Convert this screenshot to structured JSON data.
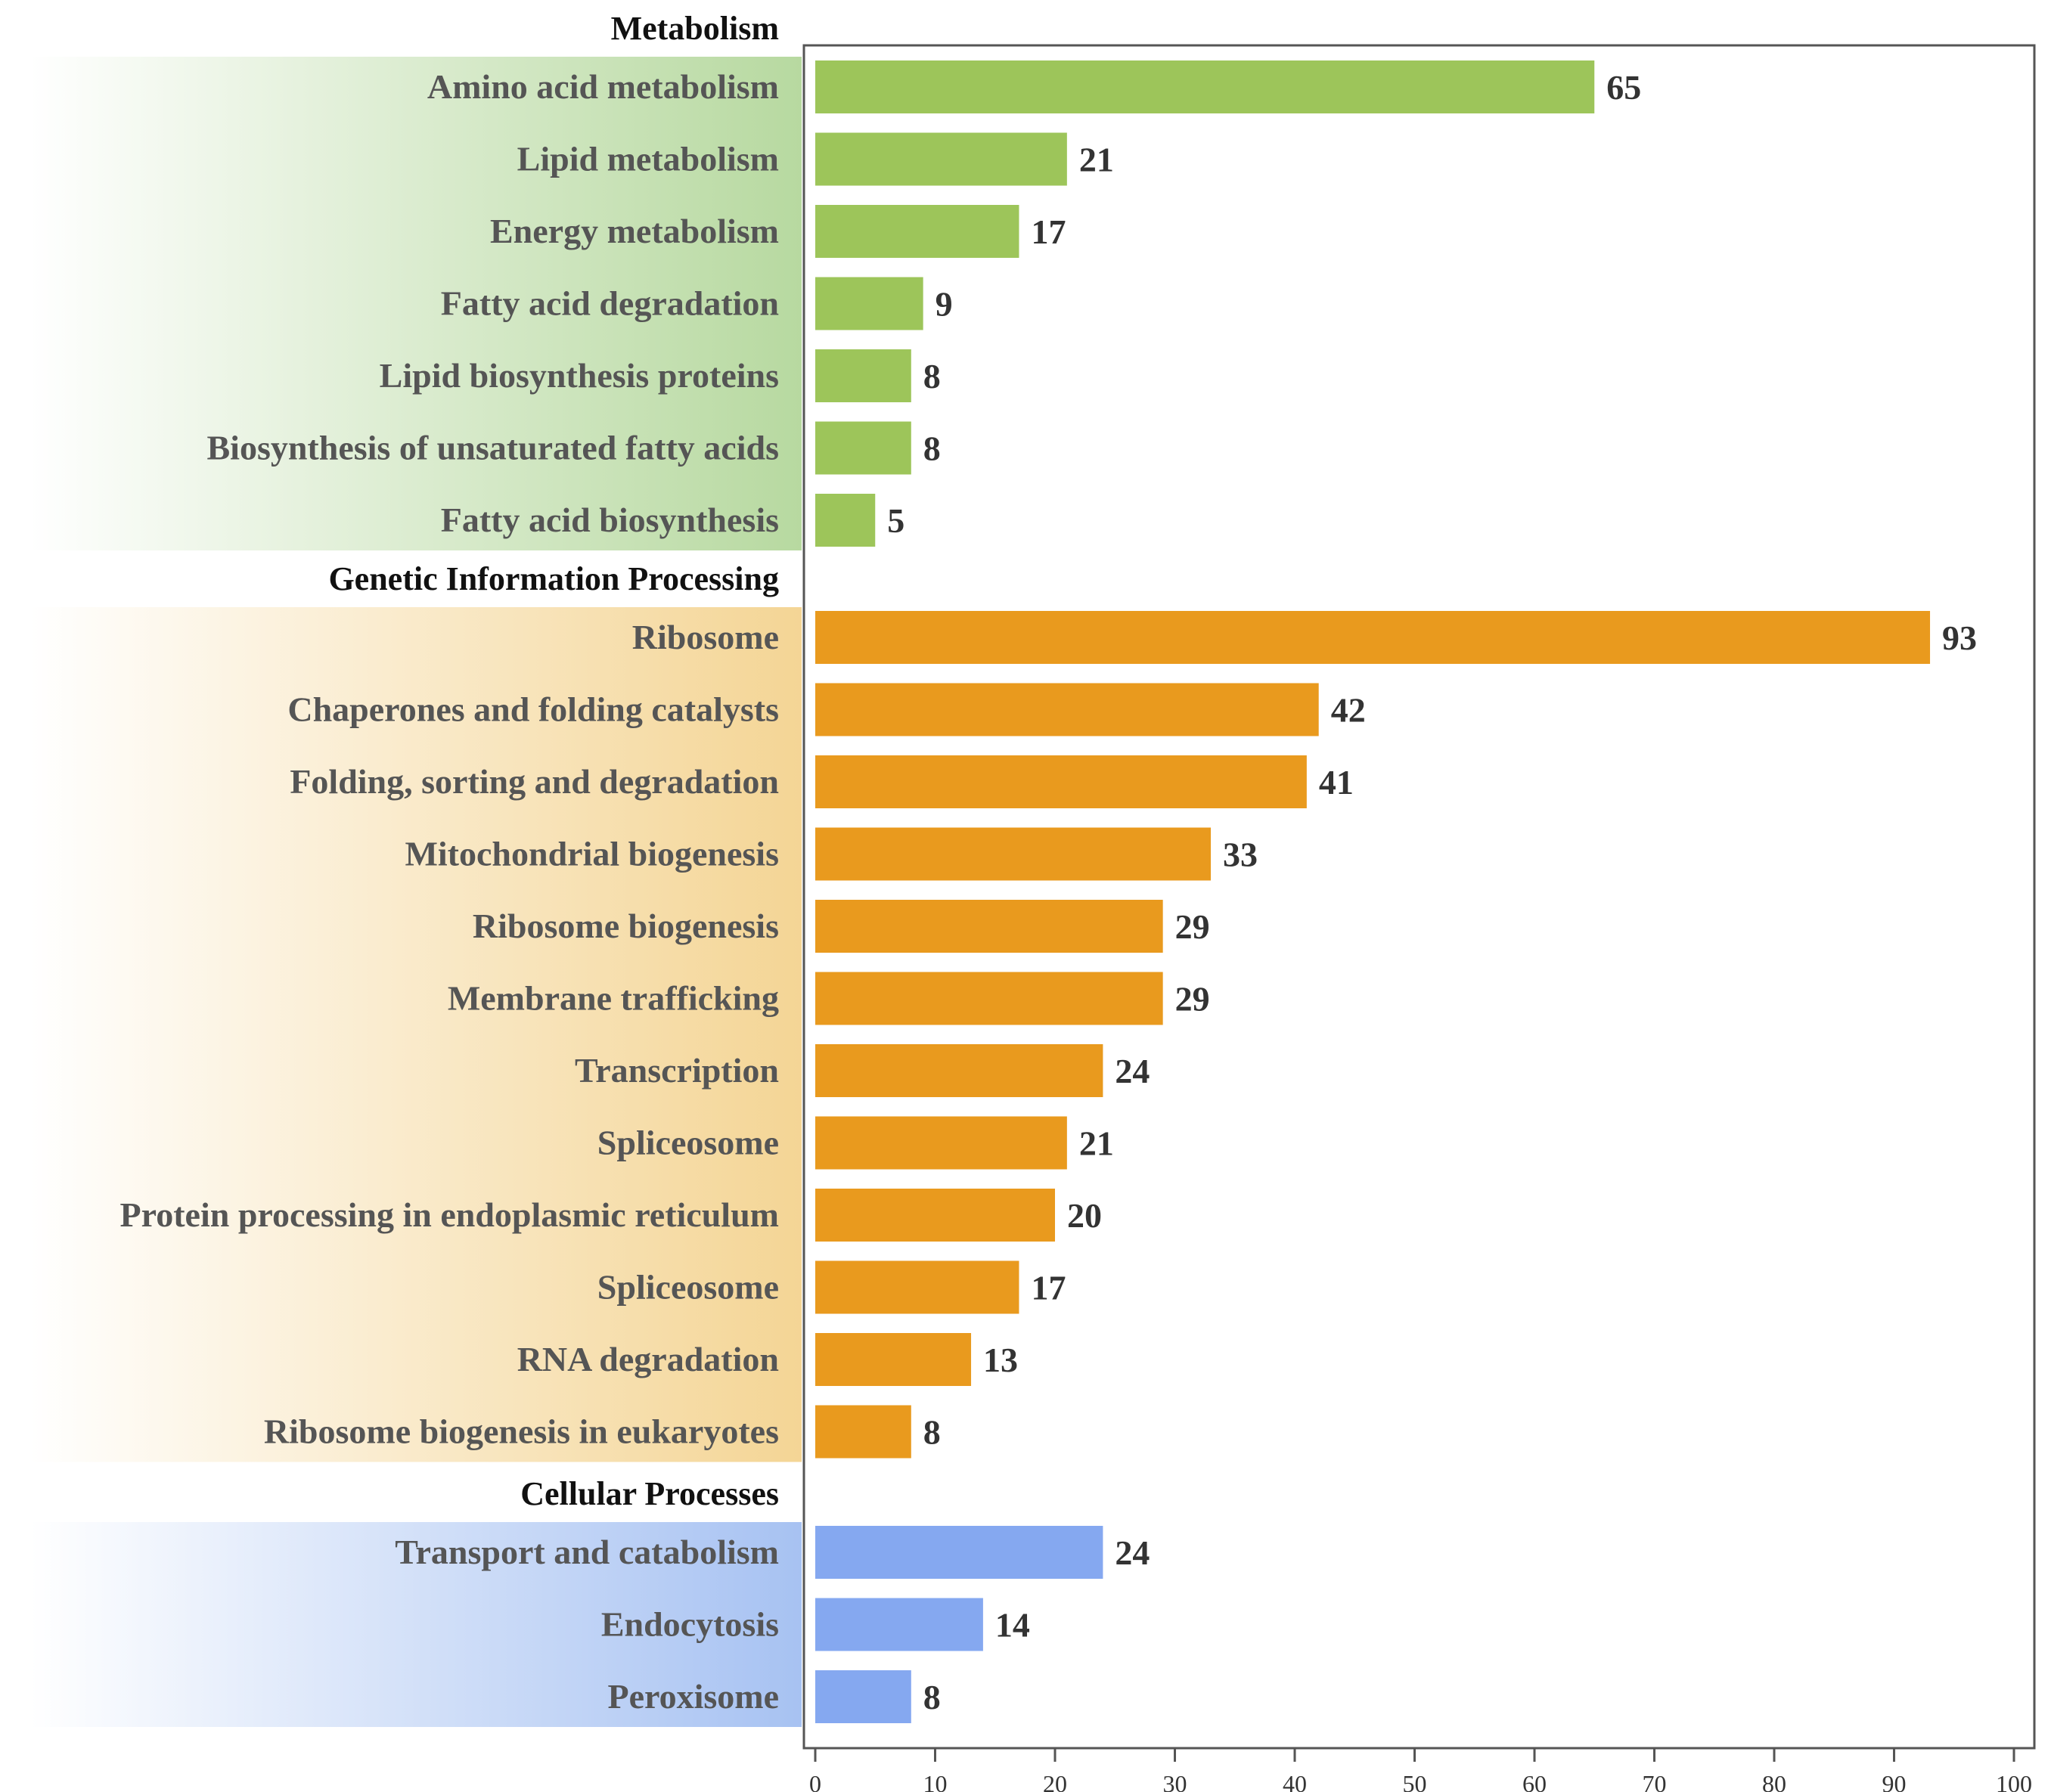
{
  "chart_data": {
    "type": "bar",
    "orientation": "horizontal",
    "xlim": [
      0,
      100
    ],
    "ticks": [
      0,
      10,
      20,
      30,
      40,
      50,
      60,
      70,
      80,
      90,
      100
    ],
    "groups": [
      {
        "name": "Metabolism",
        "color": "#9DC55A",
        "band_color": "#B7D9A0",
        "categories": [
          "Amino acid metabolism",
          "Lipid metabolism",
          "Energy metabolism",
          "Fatty acid degradation",
          "Lipid biosynthesis proteins",
          "Biosynthesis of unsaturated fatty acids",
          "Fatty acid biosynthesis"
        ],
        "values": [
          65,
          21,
          17,
          9,
          8,
          8,
          5
        ]
      },
      {
        "name": "Genetic Information Processing",
        "color": "#E99A1E",
        "band_color": "#F4D595",
        "categories": [
          "Ribosome",
          "Chaperones and folding catalysts",
          "Folding, sorting and degradation",
          "Mitochondrial biogenesis",
          "Ribosome biogenesis",
          "Membrane trafficking",
          "Transcription",
          "Spliceosome",
          "Protein processing in endoplasmic reticulum",
          "Spliceosome",
          "RNA degradation",
          "Ribosome biogenesis in eukaryotes"
        ],
        "values": [
          93,
          42,
          41,
          33,
          29,
          29,
          24,
          21,
          20,
          17,
          13,
          8
        ]
      },
      {
        "name": "Cellular Processes",
        "color": "#85A8F0",
        "band_color": "#A7C2F2",
        "categories": [
          "Transport and catabolism",
          "Endocytosis",
          "Peroxisome"
        ],
        "values": [
          24,
          14,
          8
        ]
      }
    ]
  }
}
